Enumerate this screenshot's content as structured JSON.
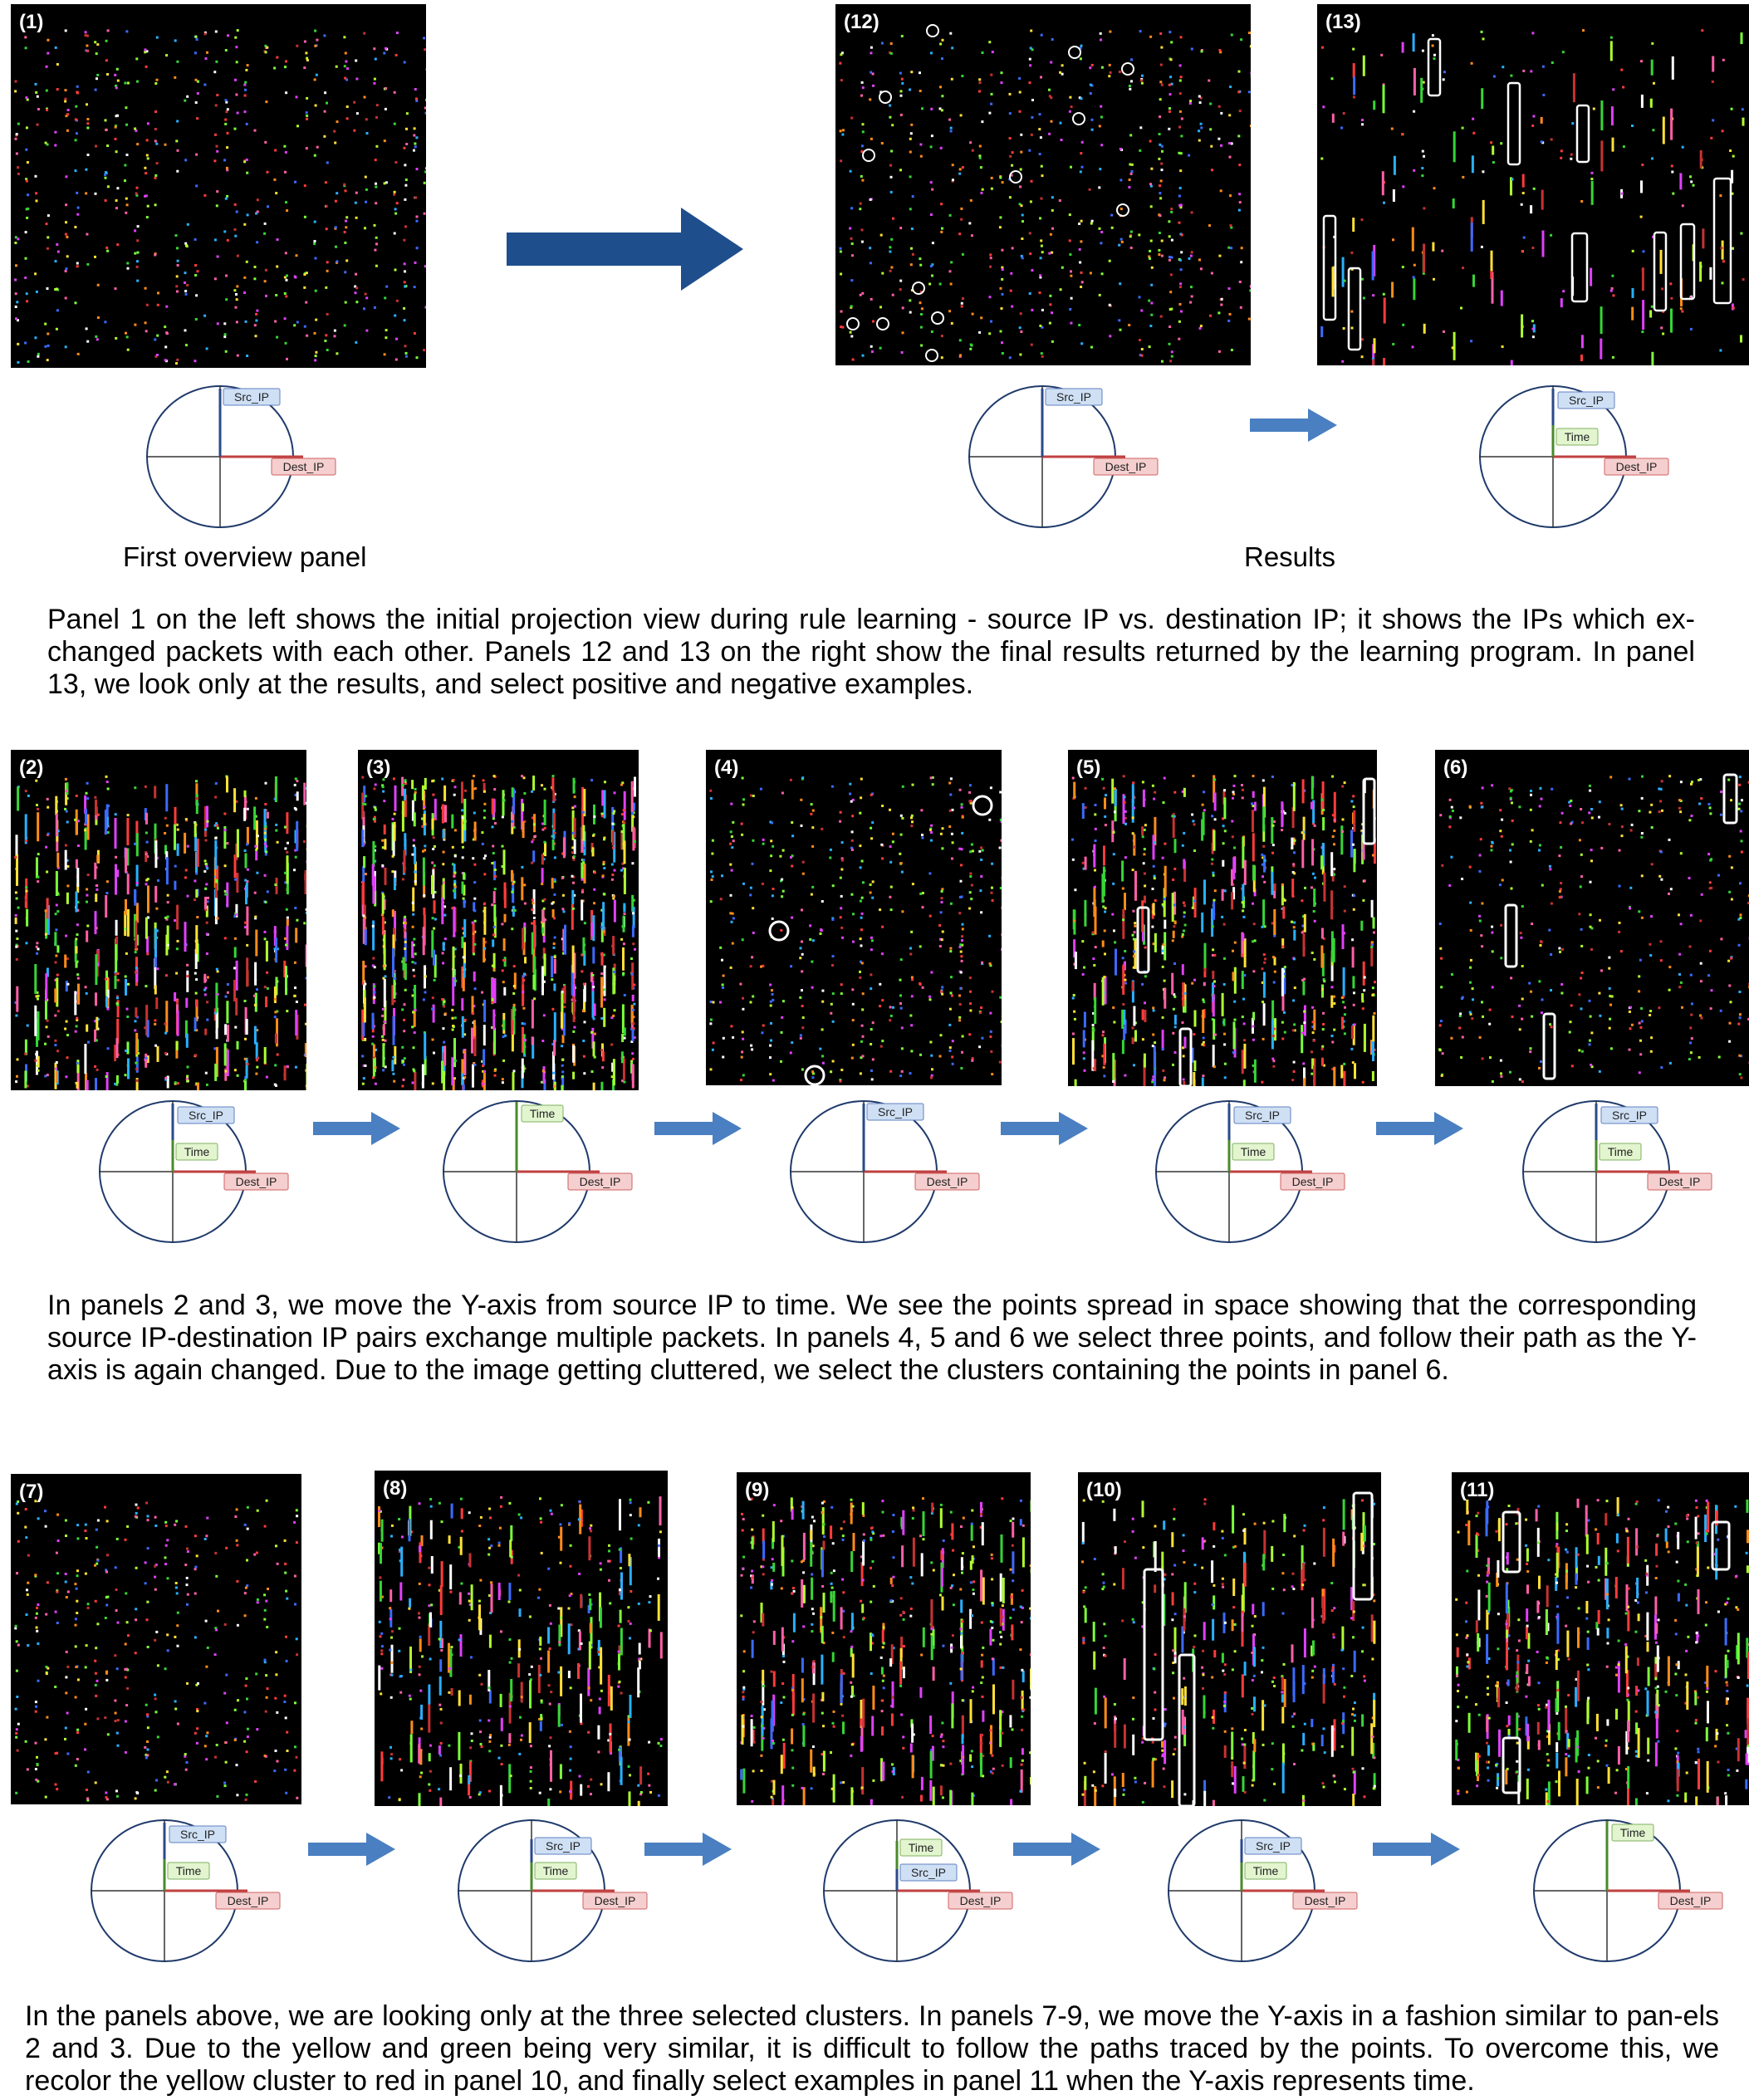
{
  "panels": [
    {
      "id": "p1",
      "label": "(1)",
      "density": 0.55,
      "streaks": false,
      "rect": null
    },
    {
      "id": "p12",
      "label": "(12)",
      "density": 0.5,
      "streaks": false
    },
    {
      "id": "p13",
      "label": "(13)",
      "density": 0.12,
      "streaks": true
    },
    {
      "id": "p2",
      "label": "(2)",
      "density": 0.7,
      "streaks": true
    },
    {
      "id": "p3",
      "label": "(3)",
      "density": 1.0,
      "streaks": true
    },
    {
      "id": "p4",
      "label": "(4)",
      "density": 0.35,
      "streaks": false
    },
    {
      "id": "p5",
      "label": "(5)",
      "density": 0.7,
      "streaks": true
    },
    {
      "id": "p6",
      "label": "(6)",
      "density": 0.25,
      "streaks": false
    },
    {
      "id": "p7",
      "label": "(7)",
      "density": 0.25,
      "streaks": false
    },
    {
      "id": "p8",
      "label": "(8)",
      "density": 0.35,
      "streaks": true
    },
    {
      "id": "p9",
      "label": "(9)",
      "density": 0.5,
      "streaks": true
    },
    {
      "id": "p10",
      "label": "(10)",
      "density": 0.3,
      "streaks": true
    },
    {
      "id": "p11",
      "label": "(11)",
      "density": 0.45,
      "streaks": true
    }
  ],
  "axes": {
    "src_ip": "Src_IP",
    "time": "Time",
    "dest_ip": "Dest_IP"
  },
  "labels": {
    "first_overview": "First overview panel",
    "results": "Results"
  },
  "captions": {
    "top": "Panel 1 on the left shows the initial projection view during rule learning - source IP vs. destination IP; it shows the IPs which ex-changed packets with each other. Panels 12 and 13 on the right show the final results returned by the learning program. In panel 13, we look only at the results, and select positive and negative examples.",
    "middle": "In panels 2 and 3, we move the Y-axis from source IP to time. We see the points spread in space showing that the corresponding source IP-destination IP pairs exchange multiple packets. In panels 4, 5 and 6 we select three points, and follow their path as the Y-axis is again changed. Due to the image getting cluttered, we select the clusters containing the points in panel 6.",
    "bottom": "In the panels above, we are looking only at the three selected clusters. In panels 7-9, we move the Y-axis in a fashion similar to pan-els 2 and 3. Due to the yellow and green being very similar, it is difficult to follow the paths traced by the points. To overcome this, we recolor the yellow cluster to red in panel 10, and finally select examples in panel 11 when the Y-axis represents time."
  },
  "colors": {
    "arrow": "#4a7fc1",
    "big_arrow": "#1f4e8c",
    "src_axis": "#2a4a8a",
    "time_axis": "#4a8a2a",
    "dest_axis": "#c04040",
    "src_box": "#cfe0f5",
    "time_box": "#e2f5cf",
    "dest_box": "#f5cfcf"
  }
}
